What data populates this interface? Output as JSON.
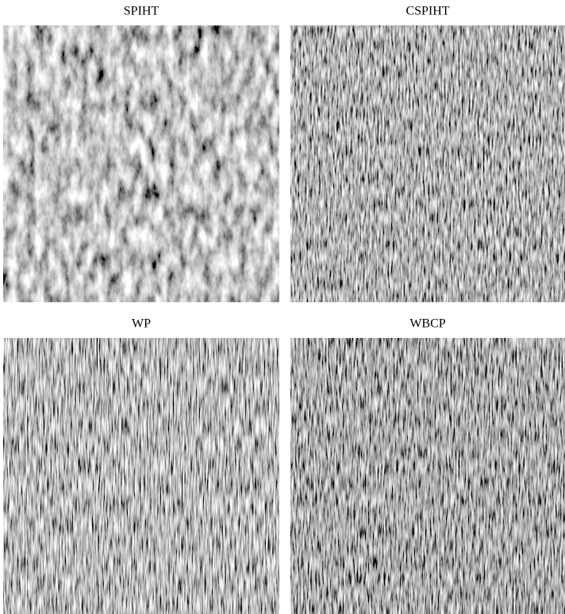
{
  "panels": [
    {
      "title": "SPIHT"
    },
    {
      "title": "CSPIHT"
    },
    {
      "title": "WP"
    },
    {
      "title": "WBCP"
    }
  ]
}
